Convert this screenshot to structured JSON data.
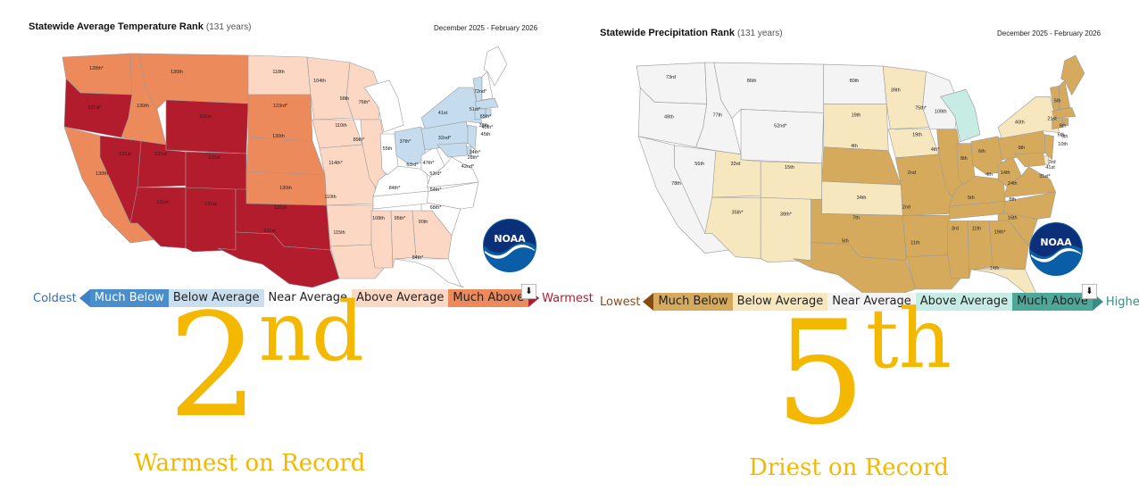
{
  "temperature": {
    "title": "Statewide Average Temperature Rank",
    "title_sub": "(131 years)",
    "period": "December 2025 - February 2026",
    "legend": {
      "low_end": "Coldest",
      "high_end": "Warmest",
      "categories": [
        "Much Below",
        "Below Average",
        "Near Average",
        "Above Average",
        "Much Above"
      ],
      "colors": {
        "much_below": "#3d82c4",
        "below": "#c4dcee",
        "near": "#ffffff",
        "above": "#fcd8c4",
        "much_above": "#ed8a5c",
        "record": "#b21c2c",
        "low_end_color": "#2f6fb3",
        "high_end_color": "#b21c2c"
      }
    },
    "highlight_rank": "2",
    "highlight_suffix": "nd",
    "caption": "Warmest on Record",
    "state_ranks": {
      "WA": "128th*",
      "OR": "131st*",
      "CA": "130th",
      "NV": "131st",
      "ID": "130th",
      "MT": "130th",
      "WY": "131st",
      "UT": "131st",
      "CO": "131st",
      "AZ": "131st",
      "NM": "131st",
      "ND": "118th",
      "SD": "123rd*",
      "NE": "130th",
      "KS": "130th",
      "OK": "131st",
      "TX": "131st",
      "MN": "104th",
      "IA": "110th",
      "MO": "114th*",
      "AR": "110th",
      "LA": "115th",
      "WI": "98th",
      "IL": "89th*",
      "MS": "108th",
      "MI": "76th*",
      "IN": "55th",
      "OH": "37th*",
      "KY": "63rd*",
      "TN": "84th*",
      "AL": "95th*",
      "GA": "90th",
      "FL": "84th*",
      "SC": "68th*",
      "NC": "54th*",
      "VA": "53rd*",
      "WV": "47th*",
      "PA": "32nd*",
      "NY": "41st",
      "ME": "72nd*",
      "VT": "51st*",
      "NH": "65th*",
      "MA": "38th",
      "CT": "45th",
      "RI": "40th*",
      "NJ": "34th*",
      "DE": "28th*",
      "MD": "42nd*"
    }
  },
  "precipitation": {
    "title": "Statewide Precipitation Rank",
    "title_sub": "(131 years)",
    "period": "December 2025 - February 2026",
    "legend": {
      "low_end": "Lowest",
      "high_end": "Highest",
      "categories": [
        "Much Below",
        "Below Average",
        "Near Average",
        "Above Average",
        "Much Above"
      ],
      "colors": {
        "much_below": "#d6aa5c",
        "below": "#f7e7be",
        "near": "#f4f4f4",
        "above": "#c6ece4",
        "much_above": "#4ea89a",
        "low_end_color": "#8a4b10",
        "high_end_color": "#3a8c84"
      }
    },
    "highlight_rank": "5",
    "highlight_suffix": "th",
    "caption": "Driest on Record",
    "state_ranks": {
      "WA": "73rd",
      "OR": "48th",
      "CA": "78th",
      "NV": "56th",
      "ID": "77th",
      "MT": "86th",
      "WY": "52nd*",
      "UT": "33rd",
      "CO": "15th",
      "AZ": "35th*",
      "NM": "38th*",
      "ND": "80th",
      "SD": "19th",
      "NE": "4th",
      "KS": "34th",
      "OK": "7th",
      "TX": "5th",
      "MN": "39th",
      "IA": "19th",
      "MO": "2nd",
      "AR": "2nd",
      "LA": "11th",
      "WI": "75th*",
      "IL": "4th*",
      "MS": "3rd",
      "MI": "109th",
      "IN": "8th",
      "OH": "6th",
      "KY": "4th",
      "TN": "5th",
      "AL": "11th",
      "GA": "19th*",
      "FL": "14th",
      "SC": "16th",
      "NC": "8th",
      "VA": "24th",
      "WV": "14th",
      "PA": "9th",
      "NY": "40th",
      "ME": "5th",
      "VT": "21st",
      "NH": "8th",
      "MA": "6th",
      "CT": "10th",
      "RI": "9th",
      "NJ": "3rd",
      "DE": "41st",
      "MD": "31st*"
    }
  },
  "noaa_logo_text": "NOAA",
  "download_icon": "download-icon"
}
